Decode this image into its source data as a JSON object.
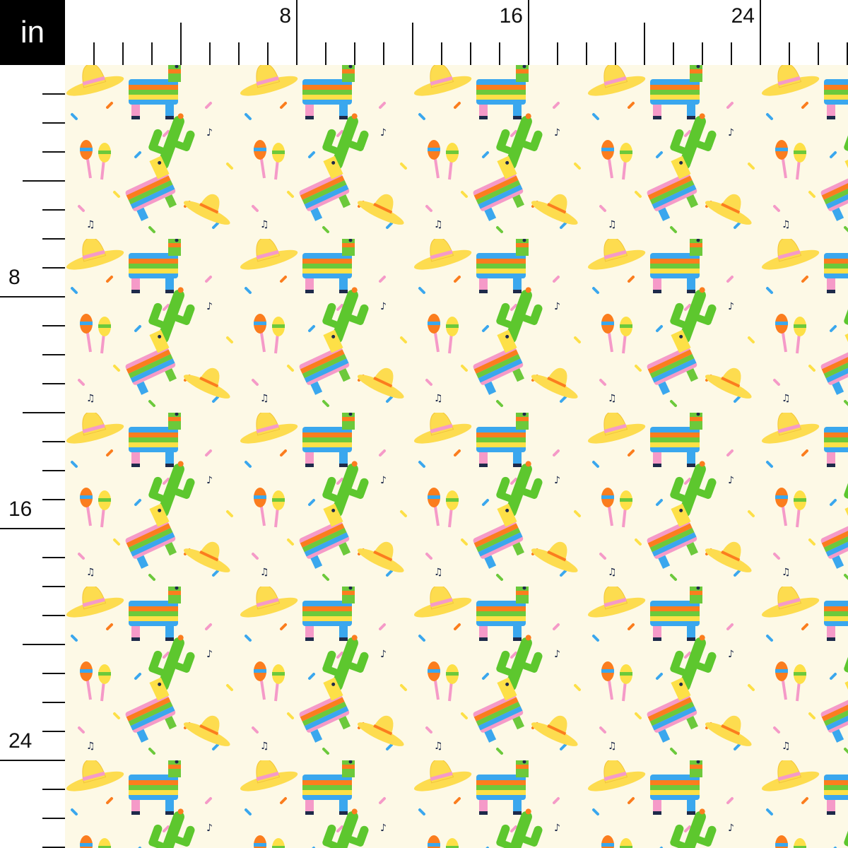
{
  "ruler": {
    "unit_label": "in",
    "top_labels": [
      "8",
      "16",
      "24"
    ],
    "left_labels": [
      "8",
      "16",
      "24"
    ],
    "inches_per_tick": 1,
    "major_every_inches": 4
  },
  "fabric": {
    "description_motifs": [
      "pinata-icon",
      "cactus-icon",
      "sombrero-icon",
      "maracas-icon",
      "music-note-icon",
      "confetti"
    ],
    "colors": {
      "background": "#fdf9e6",
      "cactus": "#5dc72e",
      "sombrero": "#fddc4f",
      "blue": "#3aa7ee",
      "pink": "#f59ac8",
      "orange": "#fb7d1e",
      "green": "#6cc93b",
      "yellow": "#fde047",
      "navy": "#1e2a4a"
    }
  }
}
